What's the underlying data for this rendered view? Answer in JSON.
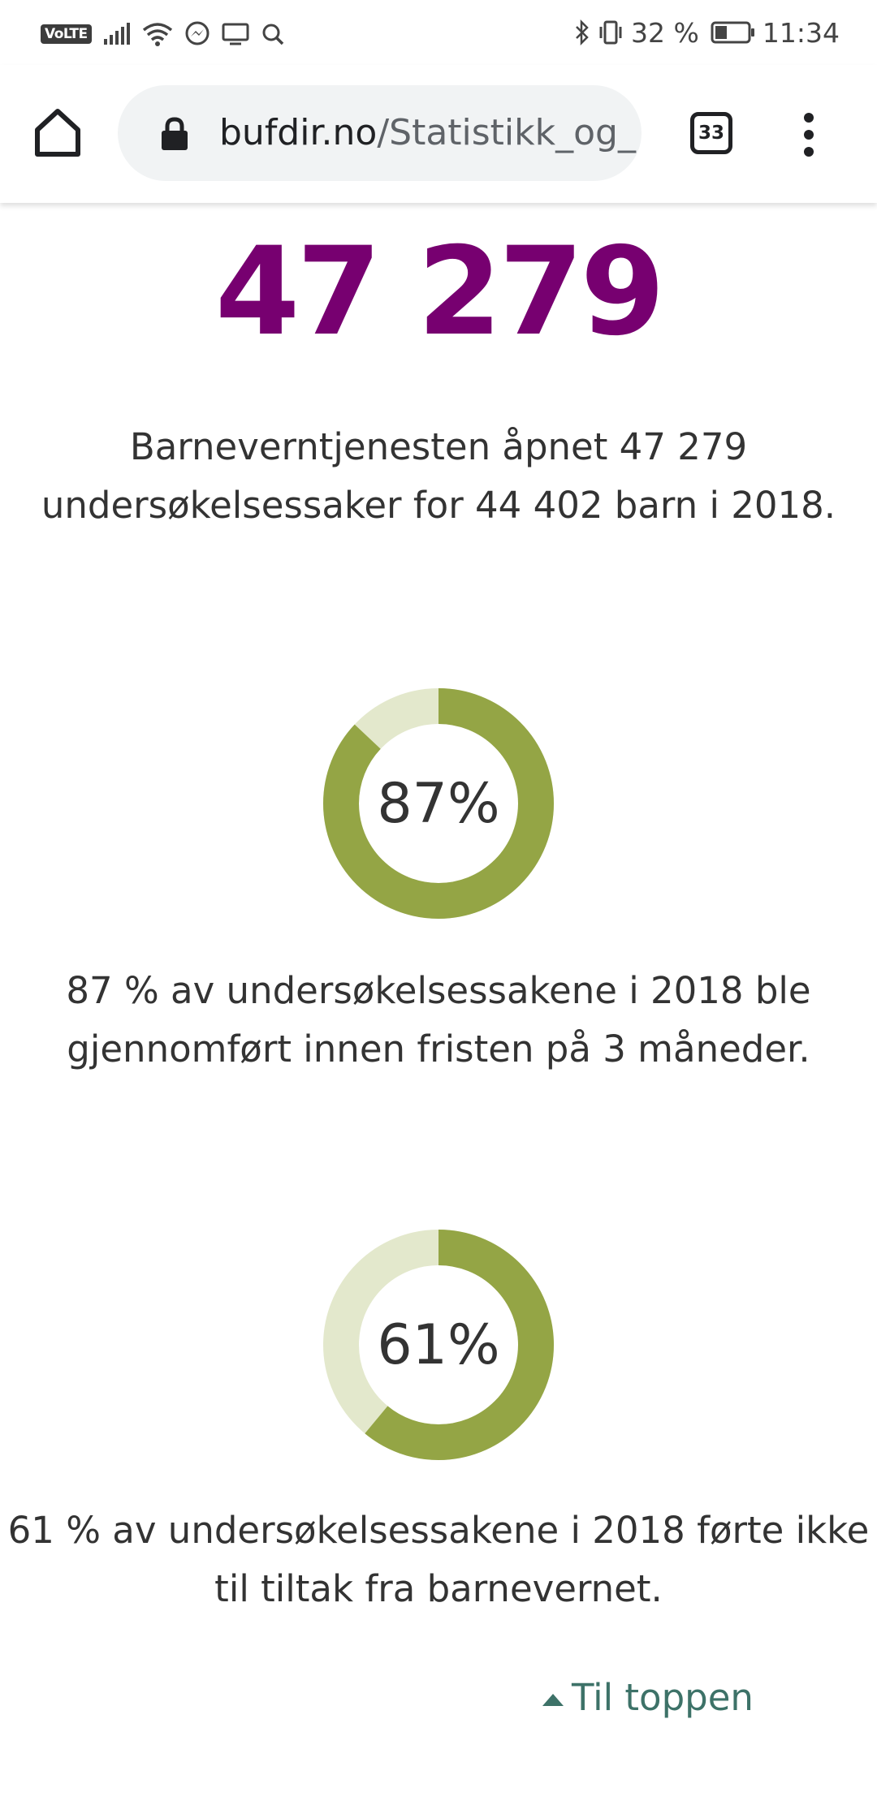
{
  "status_bar": {
    "left_badge": "VoLTE",
    "battery_percent": "32 %",
    "time": "11:34",
    "icons_left": [
      "signal-icon",
      "wifi-icon",
      "messenger-icon",
      "screen-cast-icon",
      "search-icon"
    ],
    "icons_right": [
      "bluetooth-icon",
      "vibrate-icon",
      "battery-icon"
    ]
  },
  "browser": {
    "url_host": "bufdir.no",
    "url_path": "/Statistikk_og_",
    "tab_count": "33"
  },
  "page": {
    "headline_number": "47 279",
    "headline_color": "#770070",
    "para1_line1": "Barneverntjenesten åpnet 47 279",
    "para1_line2": "undersøkelsessaker for 44 402 barn i 2018.",
    "donut1": {
      "label": "87%",
      "percent": 87,
      "fill_color": "#94a545",
      "track_color": "#e3e8cc"
    },
    "para2_line1": "87 % av undersøkelsessakene i 2018 ble",
    "para2_line2": "gjennomført innen fristen på 3 måneder.",
    "donut2": {
      "label": "61%",
      "percent": 61,
      "fill_color": "#94a545",
      "track_color": "#e3e8cc"
    },
    "para3_line1": "61 % av undersøkelsessakene i 2018 førte ikke",
    "para3_line2": "til tiltak fra barnevernet.",
    "back_to_top_label": "Til toppen",
    "link_color": "#3d7268"
  }
}
